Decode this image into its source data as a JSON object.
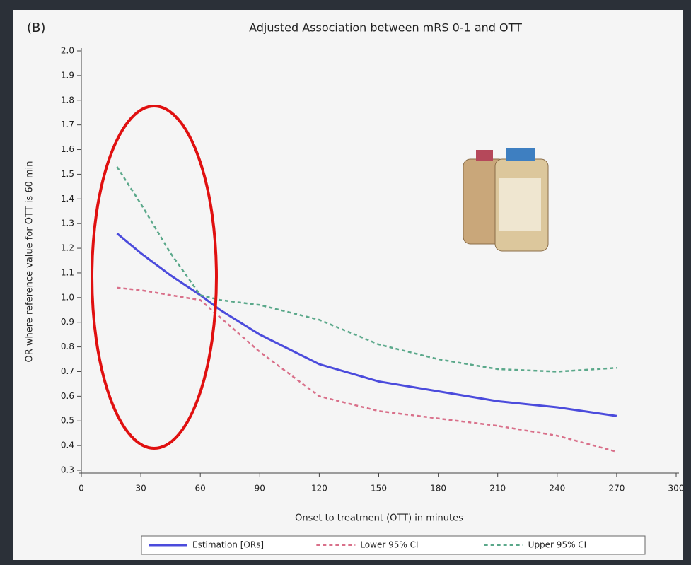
{
  "chart_data": {
    "type": "line",
    "panel_label": "(B)",
    "title": "Adjusted Association between mRS 0-1 and OTT",
    "x_label": "Onset to treatment (OTT) in minutes",
    "y_label": "OR where reference value for OTT is 60 min",
    "x": [
      18,
      30,
      45,
      60,
      70,
      90,
      120,
      150,
      180,
      210,
      240,
      270
    ],
    "series": [
      {
        "name": "Estimation [ORs]",
        "color": "#4b4bdc",
        "dash": "solid",
        "values": [
          1.26,
          1.18,
          1.09,
          1.01,
          0.95,
          0.85,
          0.73,
          0.66,
          0.62,
          0.58,
          0.555,
          0.52
        ]
      },
      {
        "name": "Lower 95% CI",
        "color": "#d9708a",
        "dash": "dashed",
        "values": [
          1.04,
          1.03,
          1.01,
          0.99,
          0.92,
          0.78,
          0.6,
          0.54,
          0.51,
          0.48,
          0.44,
          0.375
        ]
      },
      {
        "name": "Upper 95% CI",
        "color": "#5aa88a",
        "dash": "dashed",
        "values": [
          1.53,
          1.38,
          1.18,
          1.01,
          0.99,
          0.97,
          0.91,
          0.81,
          0.75,
          0.71,
          0.7,
          0.715
        ]
      }
    ],
    "xlim": [
      0,
      300
    ],
    "xticks": [
      0,
      30,
      60,
      90,
      120,
      150,
      180,
      210,
      240,
      270,
      300
    ],
    "ylim": [
      0.3,
      2.0
    ],
    "yticks": [
      0.3,
      0.4,
      0.5,
      0.6,
      0.7,
      0.8,
      0.9,
      {
        "value": 1,
        "label": "1.0"
      },
      1.1,
      1.2,
      1.3,
      1.4,
      1.5,
      1.6,
      1.7,
      1.8,
      1.9,
      {
        "value": 2,
        "label": "2.0"
      }
    ],
    "grid": false,
    "legend": "bottom"
  }
}
